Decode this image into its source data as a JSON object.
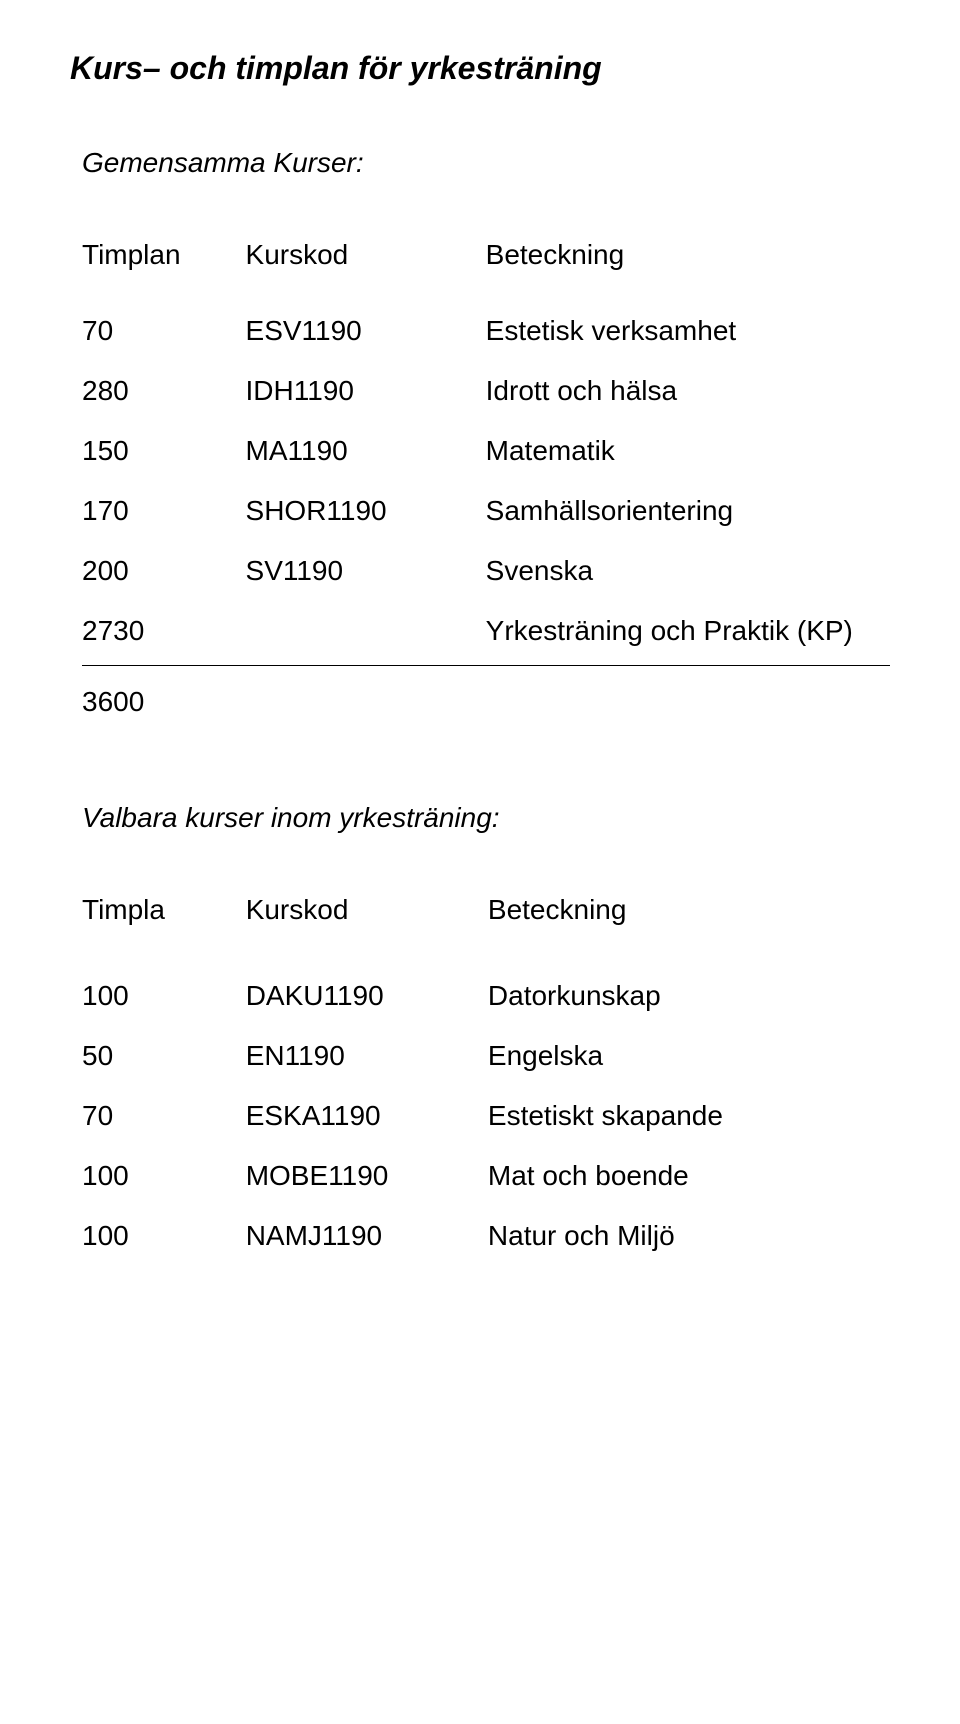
{
  "doc": {
    "title": "Kurs– och timplan för yrkesträning",
    "section1_title": "Gemensamma Kurser:",
    "table1": {
      "headers": {
        "a": "Timplan",
        "b": "Kurskod",
        "c": "Beteckning"
      },
      "rows": [
        {
          "a": "70",
          "b": "ESV1190",
          "c": "Estetisk verksamhet"
        },
        {
          "a": "280",
          "b": "IDH1190",
          "c": "Idrott och hälsa"
        },
        {
          "a": "150",
          "b": "MA1190",
          "c": "Matematik"
        },
        {
          "a": "170",
          "b": "SHOR1190",
          "c": "Samhällsorientering"
        },
        {
          "a": "200",
          "b": "SV1190",
          "c": "Svenska"
        },
        {
          "a": "2730",
          "b": "",
          "c": "Yrkesträning och Praktik (KP)"
        }
      ],
      "total": "3600"
    },
    "section2_title": "Valbara kurser inom yrkesträning:",
    "table2": {
      "headers": {
        "a": "Timpla",
        "b": "Kurskod",
        "c": "Beteckning"
      },
      "rows": [
        {
          "a": "100",
          "b": "DAKU1190",
          "c": "Datorkunskap"
        },
        {
          "a": "50",
          "b": "EN1190",
          "c": "Engelska"
        },
        {
          "a": "70",
          "b": "ESKA1190",
          "c": "Estetiskt skapande"
        },
        {
          "a": "100",
          "b": "MOBE1190",
          "c": "Mat och boende"
        },
        {
          "a": "100",
          "b": "NAMJ1190",
          "c": "Natur och Miljö"
        }
      ]
    }
  }
}
